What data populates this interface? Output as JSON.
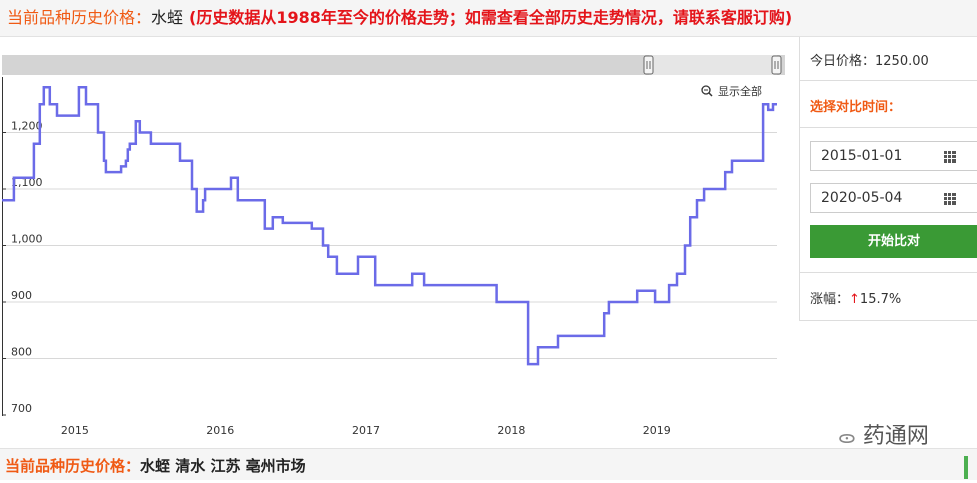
{
  "header": {
    "label": "当前品种历史价格：",
    "product": "水蛭",
    "note": "(历史数据从1988年至今的价格走势；如需查看全部历史走势情况，请联系客服订购)"
  },
  "chart_toolbar": {
    "show_all": "显示全部",
    "zoom_icon": "zoom-out-icon"
  },
  "side_panel": {
    "today_price": "今日价格：1250.00",
    "select_label": "选择对比时间：",
    "start_date": "2015-01-01",
    "end_date": "2020-05-04",
    "calendar_icon": "calendar-grid-icon",
    "compare_button": "开始比对",
    "change_label": "涨幅：",
    "change_arrow": "↑",
    "change_value": "15.7%",
    "colors": {
      "accent": "#f05a14",
      "button": "#3a9a35",
      "up": "#e4141a"
    }
  },
  "footer": {
    "label": "当前品种历史价格：",
    "value": "水蛭 清水 江苏 亳州市场"
  },
  "watermark": "药通网",
  "chart_data": {
    "type": "line",
    "step": true,
    "color": "#6b6be8",
    "grid": true,
    "ylim": [
      700,
      1300
    ],
    "xlim": [
      "2014-07-02",
      "2019-10-30"
    ],
    "y_ticks": [
      "700",
      "800",
      "900",
      "1,000",
      "1,100",
      "1,200"
    ],
    "x_ticks": [
      "2015",
      "2016",
      "2017",
      "2018",
      "2019"
    ],
    "series": [
      {
        "points": [
          [
            "2014-07-02",
            1080
          ],
          [
            "2014-08-01",
            1120
          ],
          [
            "2014-09-20",
            1180
          ],
          [
            "2014-10-05",
            1250
          ],
          [
            "2014-10-15",
            1280
          ],
          [
            "2014-10-30",
            1250
          ],
          [
            "2014-11-17",
            1230
          ],
          [
            "2015-01-11",
            1280
          ],
          [
            "2015-01-29",
            1250
          ],
          [
            "2015-02-28",
            1200
          ],
          [
            "2015-03-15",
            1150
          ],
          [
            "2015-03-20",
            1130
          ],
          [
            "2015-04-27",
            1140
          ],
          [
            "2015-05-09",
            1150
          ],
          [
            "2015-05-14",
            1170
          ],
          [
            "2015-05-19",
            1180
          ],
          [
            "2015-06-03",
            1220
          ],
          [
            "2015-06-13",
            1200
          ],
          [
            "2015-07-11",
            1180
          ],
          [
            "2015-09-22",
            1150
          ],
          [
            "2015-10-22",
            1100
          ],
          [
            "2015-11-03",
            1060
          ],
          [
            "2015-11-19",
            1080
          ],
          [
            "2015-11-24",
            1100
          ],
          [
            "2016-01-28",
            1120
          ],
          [
            "2016-02-14",
            1080
          ],
          [
            "2016-04-22",
            1030
          ],
          [
            "2016-05-12",
            1050
          ],
          [
            "2016-06-06",
            1040
          ],
          [
            "2016-08-18",
            1030
          ],
          [
            "2016-09-15",
            1000
          ],
          [
            "2016-09-28",
            980
          ],
          [
            "2016-10-20",
            950
          ],
          [
            "2016-12-12",
            980
          ],
          [
            "2017-01-24",
            930
          ],
          [
            "2017-04-27",
            950
          ],
          [
            "2017-05-27",
            930
          ],
          [
            "2017-11-25",
            900
          ],
          [
            "2018-02-12",
            790
          ],
          [
            "2018-03-09",
            820
          ],
          [
            "2018-04-28",
            840
          ],
          [
            "2018-08-22",
            880
          ],
          [
            "2018-09-03",
            900
          ],
          [
            "2018-11-13",
            920
          ],
          [
            "2018-12-28",
            900
          ],
          [
            "2019-02-01",
            930
          ],
          [
            "2019-02-21",
            950
          ],
          [
            "2019-03-13",
            1000
          ],
          [
            "2019-03-26",
            1050
          ],
          [
            "2019-04-12",
            1080
          ],
          [
            "2019-04-30",
            1100
          ],
          [
            "2019-06-22",
            1130
          ],
          [
            "2019-07-09",
            1150
          ],
          [
            "2019-09-25",
            1250
          ],
          [
            "2019-10-08",
            1240
          ],
          [
            "2019-10-20",
            1250
          ],
          [
            "2019-10-30",
            1250
          ]
        ]
      }
    ]
  }
}
